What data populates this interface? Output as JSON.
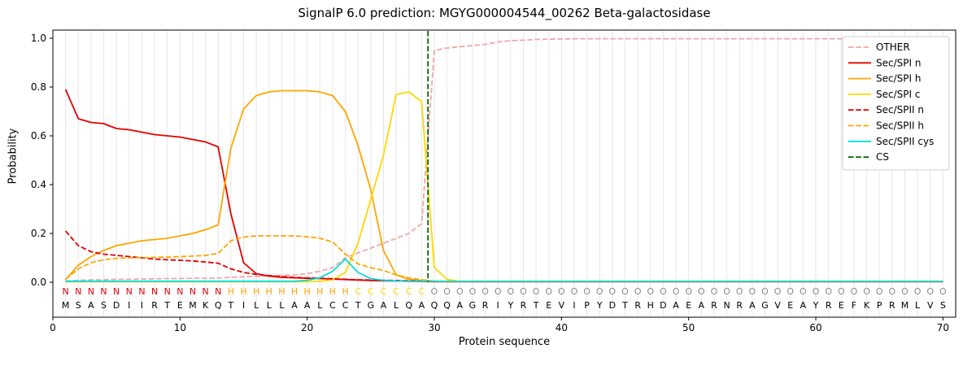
{
  "chart_data": {
    "type": "line",
    "title": "SignalP 6.0 prediction: MGYG000004544_00262 Beta-galactosidase",
    "xlabel": "Protein sequence",
    "ylabel": "Probability",
    "xlim": [
      0,
      71
    ],
    "ylim": [
      0,
      1.033
    ],
    "x_ticks": [
      "0",
      "10",
      "20",
      "30",
      "40",
      "50",
      "60",
      "70"
    ],
    "y_ticks": [
      "0.0",
      "0.2",
      "0.4",
      "0.6",
      "0.8",
      "1.0"
    ],
    "grid": true,
    "grid_color": "#e6e6e6",
    "legend_position": "upper right",
    "series": [
      {
        "name": "OTHER",
        "color": "#f3a6a6",
        "dash": true,
        "values": [
          0.005,
          0.008,
          0.01,
          0.01,
          0.012,
          0.012,
          0.013,
          0.014,
          0.015,
          0.015,
          0.016,
          0.016,
          0.017,
          0.02,
          0.022,
          0.024,
          0.026,
          0.028,
          0.03,
          0.035,
          0.045,
          0.06,
          0.1,
          0.12,
          0.14,
          0.16,
          0.18,
          0.2,
          0.24,
          0.95,
          0.96,
          0.965,
          0.97,
          0.975,
          0.985,
          0.99,
          0.992,
          0.995,
          0.996,
          0.997,
          0.998,
          0.998,
          0.998,
          0.998,
          0.998,
          0.998,
          0.998,
          0.998,
          0.998,
          0.998,
          0.998,
          0.998,
          0.998,
          0.998,
          0.998,
          0.998,
          0.998,
          0.998,
          0.998,
          0.998,
          0.998,
          0.998,
          0.998,
          0.998,
          0.998,
          0.998,
          0.998,
          0.998,
          0.998,
          0.998
        ]
      },
      {
        "name": "Sec/SPI n",
        "color": "#e50000",
        "dash": false,
        "values": [
          0.79,
          0.67,
          0.655,
          0.65,
          0.63,
          0.625,
          0.615,
          0.605,
          0.6,
          0.595,
          0.585,
          0.575,
          0.555,
          0.28,
          0.08,
          0.035,
          0.025,
          0.02,
          0.018,
          0.016,
          0.015,
          0.013,
          0.011,
          0.009,
          0.007,
          0.006,
          0.005,
          0.004,
          0.003,
          0.002,
          0.002,
          0.002,
          0.002,
          0.002,
          0.002,
          0.002,
          0.002,
          0.002,
          0.002,
          0.002,
          0.002,
          0.002,
          0.002,
          0.002,
          0.002,
          0.002,
          0.002,
          0.002,
          0.002,
          0.002,
          0.002,
          0.002,
          0.002,
          0.002,
          0.002,
          0.002,
          0.002,
          0.002,
          0.002,
          0.002,
          0.002,
          0.002,
          0.002,
          0.002,
          0.002,
          0.002,
          0.002,
          0.002,
          0.002,
          0.002
        ]
      },
      {
        "name": "Sec/SPI h",
        "color": "#ffa500",
        "dash": false,
        "values": [
          0.01,
          0.07,
          0.105,
          0.13,
          0.15,
          0.16,
          0.17,
          0.175,
          0.18,
          0.19,
          0.2,
          0.215,
          0.235,
          0.55,
          0.71,
          0.765,
          0.78,
          0.785,
          0.785,
          0.785,
          0.78,
          0.765,
          0.7,
          0.56,
          0.38,
          0.13,
          0.03,
          0.012,
          0.006,
          0.004,
          0.003,
          0.003,
          0.003,
          0.003,
          0.003,
          0.003,
          0.003,
          0.003,
          0.003,
          0.003,
          0.003,
          0.003,
          0.003,
          0.003,
          0.003,
          0.003,
          0.003,
          0.003,
          0.003,
          0.003,
          0.003,
          0.003,
          0.003,
          0.003,
          0.003,
          0.003,
          0.003,
          0.003,
          0.003,
          0.003,
          0.003,
          0.003,
          0.003,
          0.003,
          0.003,
          0.003,
          0.003,
          0.003,
          0.003,
          0.003
        ]
      },
      {
        "name": "Sec/SPI c",
        "color": "#ffd700",
        "dash": false,
        "values": [
          0.002,
          0.002,
          0.002,
          0.002,
          0.002,
          0.002,
          0.002,
          0.002,
          0.002,
          0.002,
          0.002,
          0.002,
          0.002,
          0.002,
          0.002,
          0.002,
          0.002,
          0.002,
          0.002,
          0.002,
          0.004,
          0.01,
          0.04,
          0.16,
          0.34,
          0.52,
          0.77,
          0.78,
          0.74,
          0.06,
          0.012,
          0.003,
          0.003,
          0.003,
          0.003,
          0.003,
          0.003,
          0.003,
          0.003,
          0.003,
          0.003,
          0.003,
          0.003,
          0.003,
          0.003,
          0.003,
          0.003,
          0.003,
          0.003,
          0.003,
          0.003,
          0.003,
          0.003,
          0.003,
          0.003,
          0.003,
          0.003,
          0.003,
          0.003,
          0.003,
          0.003,
          0.003,
          0.003,
          0.003,
          0.003,
          0.003,
          0.003,
          0.003,
          0.003,
          0.003
        ]
      },
      {
        "name": "Sec/SPII n",
        "color": "#e50000",
        "dash": true,
        "values": [
          0.21,
          0.15,
          0.125,
          0.115,
          0.11,
          0.105,
          0.1,
          0.095,
          0.092,
          0.09,
          0.087,
          0.083,
          0.078,
          0.055,
          0.04,
          0.032,
          0.027,
          0.023,
          0.02,
          0.018,
          0.016,
          0.014,
          0.012,
          0.01,
          0.009,
          0.008,
          0.007,
          0.006,
          0.005,
          0.003,
          0.003,
          0.003,
          0.003,
          0.003,
          0.003,
          0.003,
          0.003,
          0.003,
          0.003,
          0.003,
          0.003,
          0.003,
          0.003,
          0.003,
          0.003,
          0.003,
          0.003,
          0.003,
          0.003,
          0.003,
          0.003,
          0.003,
          0.003,
          0.003,
          0.003,
          0.003,
          0.003,
          0.003,
          0.003,
          0.003,
          0.003,
          0.003,
          0.003,
          0.003,
          0.003,
          0.003,
          0.003,
          0.003,
          0.003,
          0.003
        ]
      },
      {
        "name": "Sec/SPII h",
        "color": "#ffa500",
        "dash": true,
        "values": [
          0.012,
          0.055,
          0.08,
          0.092,
          0.098,
          0.1,
          0.1,
          0.102,
          0.103,
          0.105,
          0.107,
          0.11,
          0.118,
          0.17,
          0.185,
          0.19,
          0.19,
          0.19,
          0.19,
          0.186,
          0.18,
          0.165,
          0.115,
          0.075,
          0.06,
          0.048,
          0.03,
          0.018,
          0.01,
          0.005,
          0.004,
          0.004,
          0.004,
          0.004,
          0.004,
          0.004,
          0.004,
          0.004,
          0.004,
          0.004,
          0.004,
          0.004,
          0.004,
          0.004,
          0.004,
          0.004,
          0.004,
          0.004,
          0.004,
          0.004,
          0.004,
          0.004,
          0.004,
          0.004,
          0.004,
          0.004,
          0.004,
          0.004,
          0.004,
          0.004,
          0.004,
          0.004,
          0.004,
          0.004,
          0.004,
          0.004,
          0.004,
          0.004,
          0.004,
          0.004
        ]
      },
      {
        "name": "Sec/SPII cys",
        "color": "#00dddd",
        "dash": false,
        "values": [
          0.004,
          0.004,
          0.004,
          0.004,
          0.004,
          0.004,
          0.004,
          0.004,
          0.004,
          0.004,
          0.004,
          0.004,
          0.004,
          0.004,
          0.004,
          0.004,
          0.004,
          0.004,
          0.004,
          0.008,
          0.018,
          0.045,
          0.095,
          0.04,
          0.015,
          0.008,
          0.005,
          0.004,
          0.004,
          0.003,
          0.003,
          0.003,
          0.003,
          0.003,
          0.003,
          0.003,
          0.003,
          0.003,
          0.003,
          0.003,
          0.003,
          0.003,
          0.003,
          0.003,
          0.003,
          0.003,
          0.003,
          0.003,
          0.003,
          0.003,
          0.003,
          0.003,
          0.003,
          0.003,
          0.003,
          0.003,
          0.003,
          0.003,
          0.003,
          0.003,
          0.003,
          0.003,
          0.003,
          0.003,
          0.003,
          0.003,
          0.003,
          0.003,
          0.003,
          0.003
        ]
      }
    ],
    "cs_marker": {
      "name": "CS",
      "color": "#006400",
      "dash": true,
      "position": 29.5
    },
    "sequence": {
      "residues": "MSASDIIRTEMKQTILLLAALCCTGALQAQQAGRIYRTEVIPYDTRHDAEARNRAGVEAYREFKPRMLVS",
      "regions": "NNNNNNNNNNNNNHHHHHHHHHHCCCCCCOOOOOOOOOOOOOOOOOOOOOOOOOOOOOOOOOOOOOOOOO",
      "region_colors": {
        "N": "#e50000",
        "H": "#ffa500",
        "C": "#ffd700",
        "O": "#8a8a8a"
      },
      "residue_color": "#000000"
    }
  }
}
